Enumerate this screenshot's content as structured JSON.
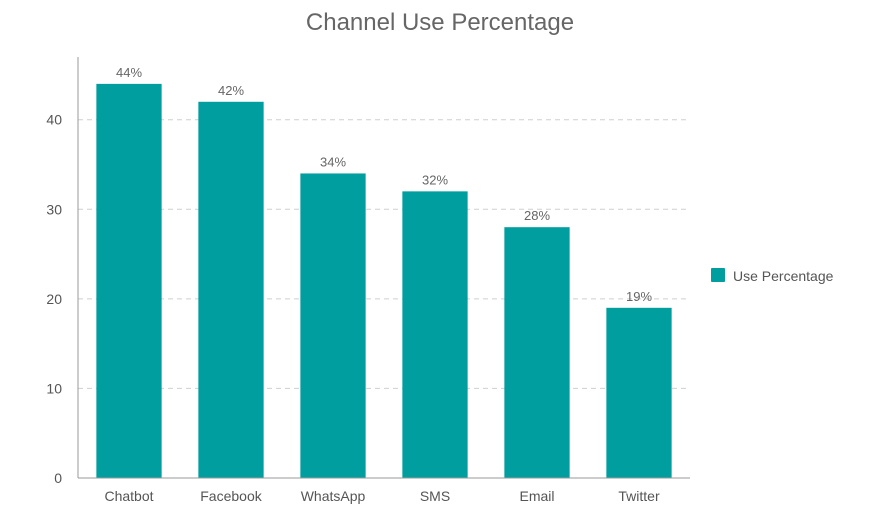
{
  "chart_data": {
    "type": "bar",
    "title": "Channel Use Percentage",
    "categories": [
      "Chatbot",
      "Facebook",
      "WhatsApp",
      "SMS",
      "Email",
      "Twitter"
    ],
    "series": [
      {
        "name": "Use Percentage",
        "values": [
          44,
          42,
          34,
          32,
          28,
          19
        ],
        "data_labels": [
          "44%",
          "42%",
          "34%",
          "32%",
          "28%",
          "19%"
        ],
        "color": "#009e9e"
      }
    ],
    "ylim": [
      0,
      47
    ],
    "yticks": [
      0,
      10,
      20,
      30,
      40
    ],
    "grid": true,
    "legend_position": "right"
  }
}
